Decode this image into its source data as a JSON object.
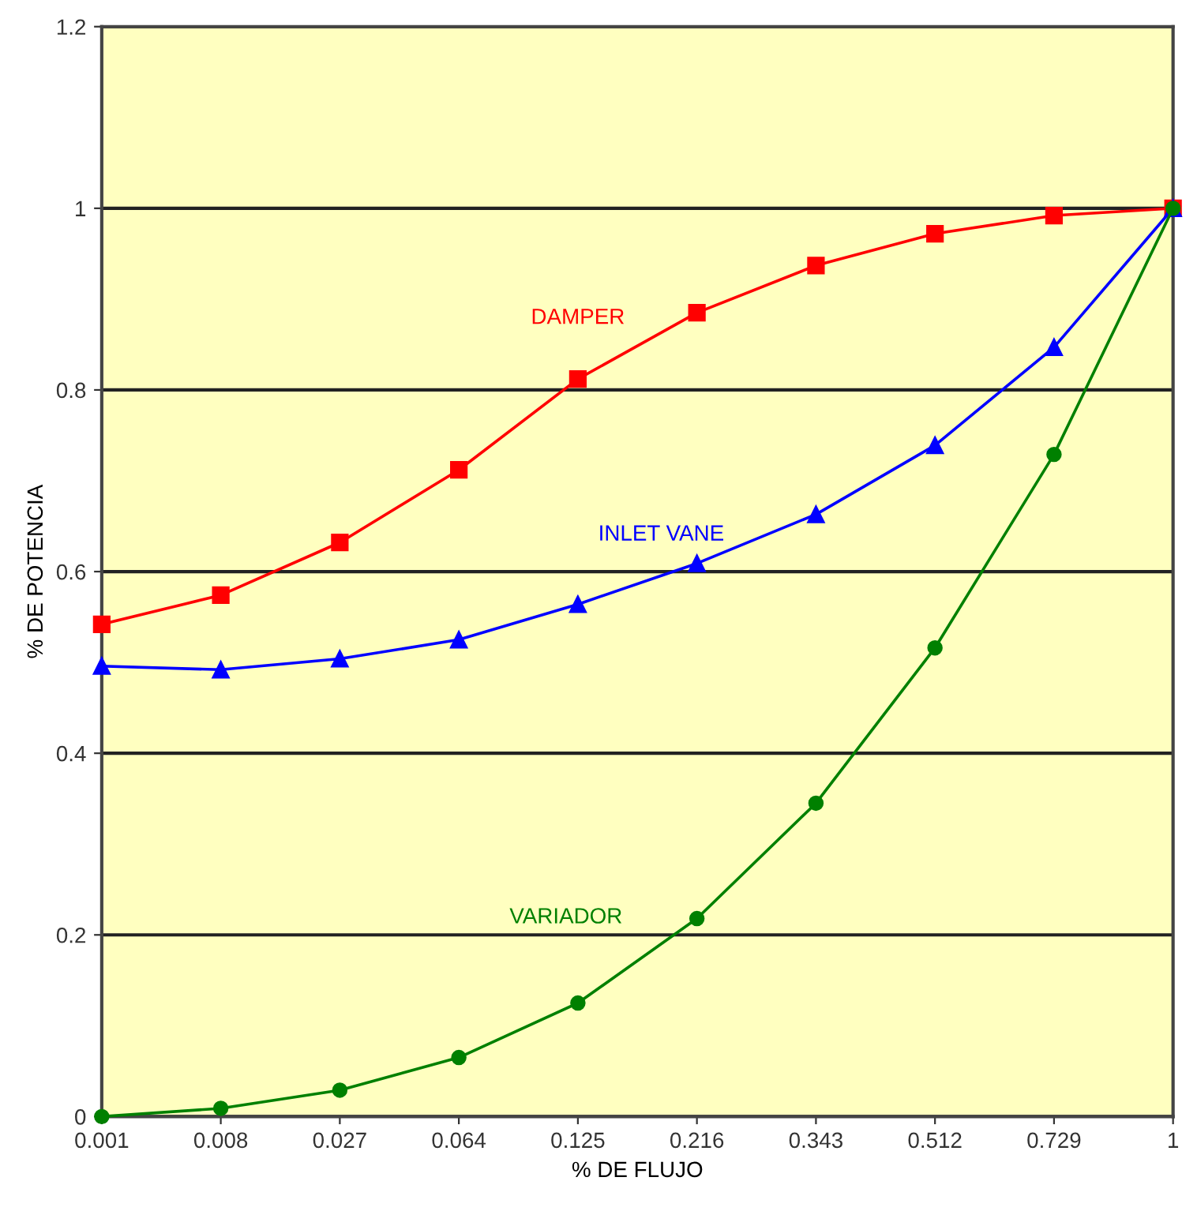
{
  "chart_data": {
    "type": "line",
    "xlabel": "% DE FLUJO",
    "ylabel": "% DE POTENCIA",
    "categories": [
      "0.001",
      "0.008",
      "0.027",
      "0.064",
      "0.125",
      "0.216",
      "0.343",
      "0.512",
      "0.729",
      "1"
    ],
    "series": [
      {
        "name": "DAMPER",
        "color": "#ff0000",
        "marker": "square",
        "values": [
          0.542,
          0.574,
          0.632,
          0.712,
          0.812,
          0.885,
          0.937,
          0.972,
          0.992,
          1.0
        ]
      },
      {
        "name": "INLET VANE",
        "color": "#0000ff",
        "marker": "triangle",
        "values": [
          0.496,
          0.492,
          0.504,
          0.525,
          0.564,
          0.609,
          0.663,
          0.739,
          0.847,
          1.0
        ]
      },
      {
        "name": "VARIADOR",
        "color": "#008000",
        "marker": "circle",
        "values": [
          0.0,
          0.009,
          0.029,
          0.065,
          0.125,
          0.218,
          0.345,
          0.516,
          0.729,
          1.0
        ]
      }
    ],
    "ylim": [
      0,
      1.2
    ],
    "yticks": [
      0,
      0.2,
      0.4,
      0.6,
      0.8,
      1,
      1.2
    ],
    "grid": "y",
    "legend": false
  }
}
